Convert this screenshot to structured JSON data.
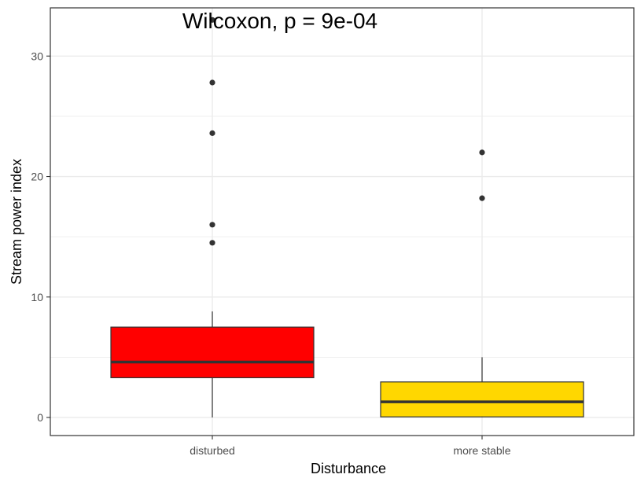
{
  "chart_data": {
    "type": "boxplot",
    "annotation": "Wilcoxon, p = 9e-04",
    "xlabel": "Disturbance",
    "ylabel": "Stream power index",
    "ylim": [
      -1.5,
      34
    ],
    "yticks": [
      0,
      10,
      20,
      30
    ],
    "grid": true,
    "categories": [
      "disturbed",
      "more stable"
    ],
    "boxes": [
      {
        "category": "disturbed",
        "min": 0,
        "q1": 3.3,
        "median": 4.6,
        "q3": 7.5,
        "max": 8.8,
        "outliers": [
          14.5,
          16.0,
          23.6,
          27.8,
          33.0
        ],
        "fill": "#ff0000"
      },
      {
        "category": "more stable",
        "min": 0,
        "q1": 0.05,
        "median": 1.3,
        "q3": 2.95,
        "max": 5.0,
        "outliers": [
          18.2,
          22.0
        ],
        "fill": "#ffd700"
      }
    ],
    "colors": {
      "outline": "#333333",
      "grid": "#ebebeb",
      "panel_border": "#333333",
      "point": "#333333"
    }
  }
}
